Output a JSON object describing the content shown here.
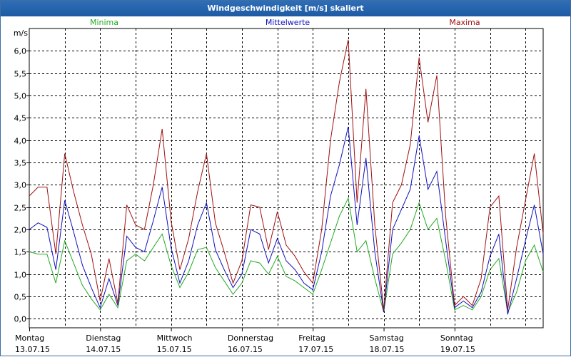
{
  "window": {
    "title": "Windgeschwindigkeit [m/s] skaliert"
  },
  "colors": {
    "title_bar": "#1d5aa3",
    "minima": "#22aa22",
    "mittelwerte": "#1010c0",
    "maxima": "#a01010",
    "grid": "#000000"
  },
  "chart_data": {
    "type": "line",
    "title": "Windgeschwindigkeit [m/s] skaliert",
    "ylabel": "m/s",
    "xlabel": "",
    "ylim": [
      -0.2,
      6.5
    ],
    "yticks": [
      0.0,
      0.5,
      1.0,
      1.5,
      2.0,
      2.5,
      3.0,
      3.5,
      4.0,
      4.5,
      5.0,
      5.5,
      6.0
    ],
    "ytick_labels": [
      "0,0",
      "0,5",
      "1,0",
      "1,5",
      "2,0",
      "2,5",
      "3,0",
      "3,5",
      "4,0",
      "4,5",
      "5,0",
      "5,5",
      "6,0"
    ],
    "xlim": [
      0,
      7.25
    ],
    "day_ticks": [
      {
        "day": "Montag",
        "date": "13.07.15",
        "x": 0
      },
      {
        "day": "Dienstag",
        "date": "14.07.15",
        "x": 1
      },
      {
        "day": "Mittwoch",
        "date": "15.07.15",
        "x": 2
      },
      {
        "day": "Donnerstag",
        "date": "16.07.15",
        "x": 3
      },
      {
        "day": "Freitag",
        "date": "17.07.15",
        "x": 4
      },
      {
        "day": "Samstag",
        "date": "18.07.15",
        "x": 5
      },
      {
        "day": "Sonntag",
        "date": "19.07.15",
        "x": 6
      }
    ],
    "grid": true,
    "legend_placement": "top",
    "x": [
      0.0,
      0.125,
      0.25,
      0.375,
      0.5,
      0.625,
      0.75,
      0.875,
      1.0,
      1.125,
      1.25,
      1.375,
      1.5,
      1.625,
      1.75,
      1.875,
      2.0,
      2.125,
      2.25,
      2.375,
      2.5,
      2.625,
      2.75,
      2.875,
      3.0,
      3.125,
      3.25,
      3.375,
      3.5,
      3.625,
      3.75,
      3.875,
      4.0,
      4.125,
      4.25,
      4.375,
      4.5,
      4.625,
      4.75,
      4.875,
      5.0,
      5.125,
      5.25,
      5.375,
      5.5,
      5.625,
      5.75,
      5.875,
      6.0,
      6.125,
      6.25,
      6.375,
      6.5,
      6.625,
      6.75,
      6.875,
      7.0,
      7.125,
      7.25
    ],
    "series": [
      {
        "name": "Minima",
        "values": [
          1.5,
          1.45,
          1.45,
          0.8,
          1.75,
          1.25,
          0.75,
          0.45,
          0.2,
          0.55,
          0.25,
          1.3,
          1.45,
          1.3,
          1.6,
          1.9,
          1.2,
          0.7,
          1.05,
          1.55,
          1.6,
          1.15,
          0.85,
          0.55,
          0.8,
          1.3,
          1.25,
          1.0,
          1.4,
          0.95,
          0.85,
          0.7,
          0.55,
          1.1,
          1.7,
          2.3,
          2.7,
          1.5,
          1.75,
          0.9,
          0.15,
          1.45,
          1.7,
          2.0,
          2.6,
          2.0,
          2.25,
          1.3,
          0.2,
          0.3,
          0.2,
          0.5,
          1.1,
          1.35,
          0.15,
          0.6,
          1.3,
          1.65,
          1.05
        ]
      },
      {
        "name": "Mittelwerte",
        "values": [
          2.0,
          2.15,
          2.05,
          1.1,
          2.65,
          1.95,
          1.2,
          0.7,
          0.25,
          0.9,
          0.3,
          1.85,
          1.6,
          1.5,
          2.2,
          2.95,
          1.6,
          0.8,
          1.3,
          2.1,
          2.6,
          1.55,
          1.1,
          0.7,
          1.0,
          2.0,
          1.9,
          1.25,
          1.8,
          1.3,
          1.1,
          0.8,
          0.65,
          1.5,
          2.75,
          3.45,
          4.3,
          2.1,
          3.6,
          1.5,
          0.15,
          2.0,
          2.45,
          2.9,
          4.1,
          2.9,
          3.3,
          1.75,
          0.25,
          0.4,
          0.25,
          0.6,
          1.4,
          1.9,
          0.1,
          0.9,
          1.75,
          2.55,
          1.45
        ]
      },
      {
        "name": "Maxima",
        "values": [
          2.75,
          2.95,
          2.95,
          1.45,
          3.7,
          2.85,
          2.1,
          1.45,
          0.4,
          1.35,
          0.35,
          2.55,
          2.1,
          2.0,
          3.0,
          4.25,
          2.2,
          1.1,
          1.8,
          2.85,
          3.7,
          2.15,
          1.5,
          0.8,
          1.3,
          2.55,
          2.5,
          1.55,
          2.4,
          1.65,
          1.4,
          1.05,
          0.8,
          2.0,
          4.0,
          5.3,
          6.25,
          2.6,
          5.15,
          2.1,
          0.2,
          2.6,
          3.0,
          3.9,
          5.85,
          4.4,
          5.45,
          2.3,
          0.3,
          0.5,
          0.3,
          0.9,
          2.5,
          2.75,
          0.2,
          1.6,
          2.65,
          3.7,
          1.9
        ]
      }
    ]
  }
}
